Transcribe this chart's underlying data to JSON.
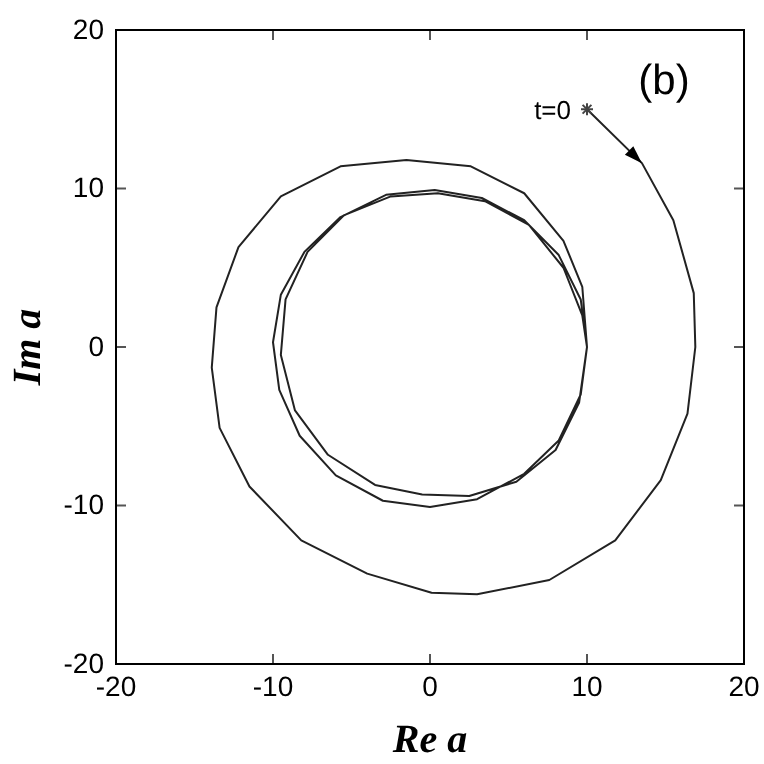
{
  "chart_data": {
    "type": "line",
    "xlabel": "Re a",
    "ylabel": "Im a",
    "xlim": [
      -20,
      20
    ],
    "ylim": [
      -20,
      20
    ],
    "xticks": [
      -20,
      -10,
      0,
      10,
      20
    ],
    "yticks": [
      -20,
      -10,
      0,
      10,
      20
    ],
    "grid": false,
    "marker": "none",
    "annotations": [
      {
        "text": "t=0",
        "x": 10,
        "y": 15
      },
      "(b)"
    ],
    "series": [
      {
        "color": "#222222",
        "x": [
          10,
          13.5,
          15.5,
          16.8,
          16.9,
          16.4,
          14.7,
          11.8,
          7.6,
          3.0,
          0.1,
          -4.0,
          -8.2,
          -11.5,
          -13.4,
          -13.9,
          -13.6,
          -12.2,
          -9.5,
          -5.7,
          -1.5,
          2.6,
          6.0,
          8.5,
          9.7,
          10.0,
          9.5,
          8,
          5.5,
          2.5,
          -0.5,
          -3.5,
          -6.5,
          -8.6,
          -9.5,
          -9.2,
          -7.8,
          -5.5,
          -2.5,
          0.5,
          3.5,
          6.3,
          8.5,
          9.7,
          10.0,
          9.6,
          8.2,
          6,
          3,
          0,
          -3,
          -6,
          -8.3,
          -9.6,
          -10,
          -9.5,
          -8,
          -5.7,
          -2.8,
          0.3,
          3.3,
          6,
          8.2,
          9.6,
          10
        ],
        "values": [
          15,
          11.6,
          8,
          3.4,
          0,
          -4.2,
          -8.4,
          -12.2,
          -14.7,
          -15.6,
          -15.5,
          -14.3,
          -12.2,
          -8.8,
          -5.1,
          -1.3,
          2.5,
          6.3,
          9.5,
          11.4,
          11.8,
          11.4,
          9.7,
          6.7,
          3.8,
          0,
          -3.5,
          -6.5,
          -8.5,
          -9.4,
          -9.3,
          -8.7,
          -6.8,
          -4,
          -0.5,
          3,
          6,
          8.3,
          9.5,
          9.7,
          9.2,
          7.7,
          5,
          2,
          0,
          -3,
          -5.9,
          -8,
          -9.6,
          -10.1,
          -9.7,
          -8.1,
          -5.6,
          -2.7,
          0.3,
          3.3,
          6,
          8.2,
          9.6,
          9.9,
          9.4,
          8,
          5.8,
          3,
          0
        ]
      }
    ]
  }
}
